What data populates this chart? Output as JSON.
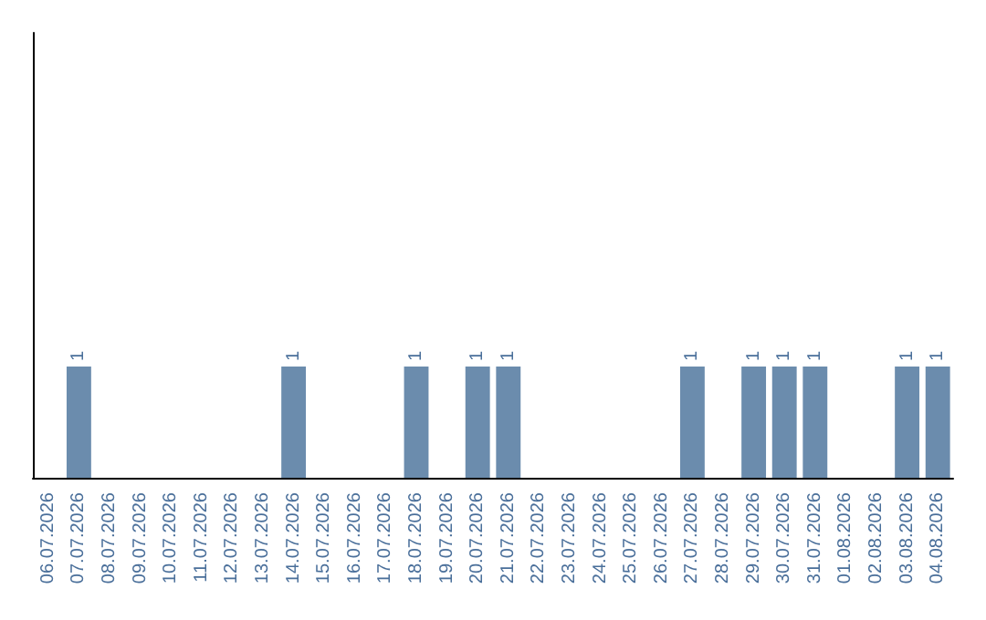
{
  "chart_data": {
    "type": "bar",
    "categories": [
      "06.07.2026",
      "07.07.2026",
      "08.07.2026",
      "09.07.2026",
      "10.07.2026",
      "11.07.2026",
      "12.07.2026",
      "13.07.2026",
      "14.07.2026",
      "15.07.2026",
      "16.07.2026",
      "17.07.2026",
      "18.07.2026",
      "19.07.2026",
      "20.07.2026",
      "21.07.2026",
      "22.07.2026",
      "23.07.2026",
      "24.07.2026",
      "25.07.2026",
      "26.07.2026",
      "27.07.2026",
      "28.07.2026",
      "29.07.2026",
      "30.07.2026",
      "31.07.2026",
      "01.08.2026",
      "02.08.2026",
      "03.08.2026",
      "04.08.2026"
    ],
    "values": [
      0,
      1,
      0,
      0,
      0,
      0,
      0,
      0,
      1,
      0,
      0,
      0,
      1,
      0,
      1,
      1,
      0,
      0,
      0,
      0,
      0,
      1,
      0,
      1,
      1,
      1,
      0,
      0,
      1,
      1
    ],
    "value_labels": [
      null,
      "1",
      null,
      null,
      null,
      null,
      null,
      null,
      "1",
      null,
      null,
      null,
      "1",
      null,
      "1",
      "1",
      null,
      null,
      null,
      null,
      null,
      "1",
      null,
      "1",
      "1",
      "1",
      null,
      null,
      "1",
      "1"
    ],
    "color": "#6b8cad",
    "ylim": [
      0,
      4
    ],
    "tick_labels": "x"
  }
}
